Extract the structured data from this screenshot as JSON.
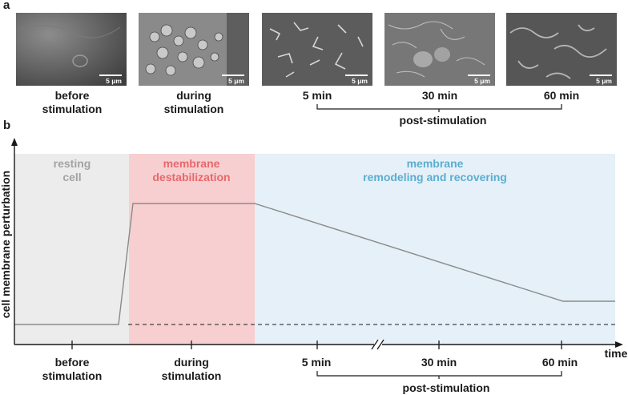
{
  "panel_a": {
    "label": "a",
    "scale_label": "5 μm",
    "captions": {
      "before": "before\nstimulation",
      "during": "during\nstimulation",
      "t5": "5 min",
      "t30": "30 min",
      "t60": "60 min",
      "post": "post-stimulation"
    }
  },
  "panel_b": {
    "label": "b",
    "y_axis_label": "cell membrane perturbation",
    "x_axis_label": "time",
    "regions": {
      "resting_line1": "resting",
      "resting_line2": "cell",
      "destab_line1": "membrane",
      "destab_line2": "destabilization",
      "remodel_line1": "membrane",
      "remodel_line2": "remodeling and recovering"
    },
    "ticks": {
      "before_1": "before",
      "before_2": "stimulation",
      "during_1": "during",
      "during_2": "stimulation",
      "t5": "5 min",
      "t30": "30 min",
      "t60": "60 min",
      "post": "post-stimulation"
    },
    "colors": {
      "resting_bg": "#ececec",
      "destab_bg": "#f8cfd0",
      "remodel_bg": "#e5f0f8",
      "resting_text": "#a3a3a3",
      "destab_text": "#e8686b",
      "remodel_text": "#5aaed2",
      "curve": "#8a8a8a"
    }
  }
}
